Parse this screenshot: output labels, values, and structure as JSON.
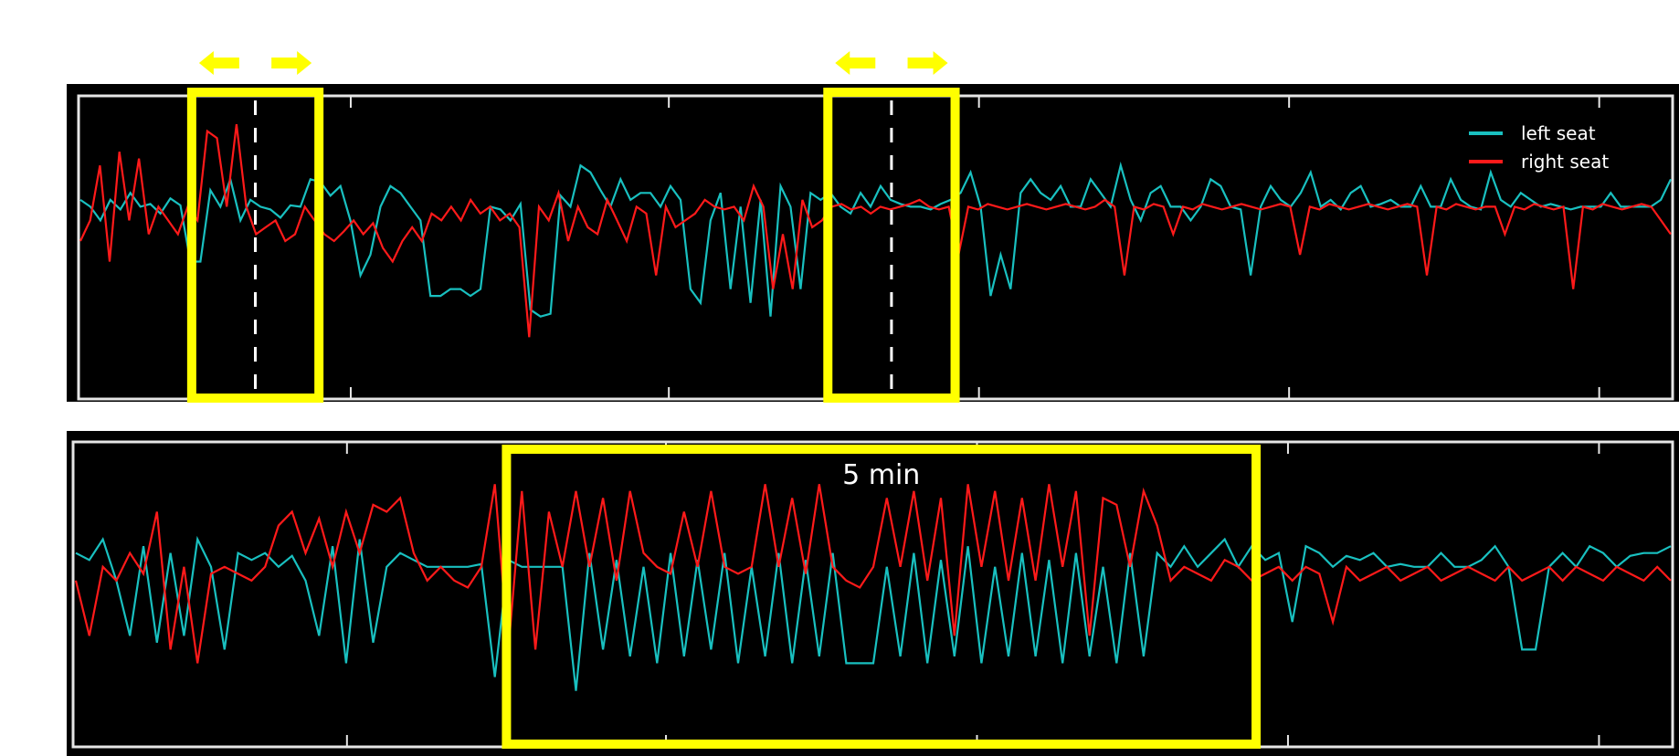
{
  "chart_data": [
    {
      "type": "line",
      "title": "",
      "xlabel": "",
      "ylabel": "",
      "grid": false,
      "legend_position": "top-right",
      "colors": {
        "background": "#000000",
        "axes": "#e6e6e6",
        "highlight": "#ffff00"
      },
      "series": [
        {
          "name": "left seat",
          "color": "#19c0c0",
          "values": [
            0.35,
            0.3,
            0.2,
            0.35,
            0.28,
            0.4,
            0.3,
            0.32,
            0.25,
            0.36,
            0.31,
            -0.1,
            -0.1,
            0.42,
            0.3,
            0.5,
            0.2,
            0.35,
            0.3,
            0.28,
            0.22,
            0.31,
            0.3,
            0.5,
            0.48,
            0.38,
            0.45,
            0.2,
            -0.2,
            -0.05,
            0.3,
            0.45,
            0.4,
            0.3,
            0.2,
            -0.35,
            -0.35,
            -0.3,
            -0.3,
            -0.35,
            -0.3,
            0.3,
            0.28,
            0.2,
            0.32,
            -0.45,
            -0.5,
            -0.48,
            0.38,
            0.3,
            0.6,
            0.55,
            0.42,
            0.3,
            0.5,
            0.35,
            0.4,
            0.4,
            0.3,
            0.45,
            0.35,
            -0.3,
            -0.4,
            0.2,
            0.4,
            -0.3,
            0.3,
            -0.4,
            0.35,
            -0.5,
            0.45,
            0.3,
            -0.3,
            0.4,
            0.35,
            0.4,
            0.3,
            0.25,
            0.4,
            0.3,
            0.45,
            0.35,
            0.32,
            0.3,
            0.3,
            0.28,
            0.32,
            0.35,
            0.4,
            0.55,
            0.3,
            -0.35,
            -0.05,
            -0.3,
            0.4,
            0.5,
            0.4,
            0.35,
            0.45,
            0.3,
            0.3,
            0.5,
            0.4,
            0.3,
            0.6,
            0.35,
            0.2,
            0.4,
            0.45,
            0.3,
            0.3,
            0.2,
            0.3,
            0.5,
            0.45,
            0.3,
            0.28,
            -0.2,
            0.3,
            0.45,
            0.35,
            0.3,
            0.4,
            0.55,
            0.3,
            0.35,
            0.28,
            0.4,
            0.45,
            0.3,
            0.32,
            0.35,
            0.3,
            0.3,
            0.45,
            0.3,
            0.3,
            0.5,
            0.35,
            0.3,
            0.28,
            0.55,
            0.35,
            0.3,
            0.4,
            0.35,
            0.3,
            0.32,
            0.3,
            0.28,
            0.3,
            0.3,
            0.3,
            0.4,
            0.3,
            0.3,
            0.3,
            0.3,
            0.35,
            0.5
          ]
        },
        {
          "name": "right seat",
          "color": "#ff1a1a",
          "values": [
            0.05,
            0.2,
            0.6,
            -0.1,
            0.7,
            0.2,
            0.65,
            0.1,
            0.3,
            0.2,
            0.1,
            0.3,
            0.2,
            0.85,
            0.8,
            0.3,
            0.9,
            0.3,
            0.1,
            0.15,
            0.2,
            0.05,
            0.1,
            0.3,
            0.2,
            0.1,
            0.05,
            0.12,
            0.2,
            0.1,
            0.18,
            0.0,
            -0.1,
            0.05,
            0.15,
            0.05,
            0.25,
            0.2,
            0.3,
            0.2,
            0.35,
            0.25,
            0.3,
            0.2,
            0.25,
            0.15,
            -0.65,
            0.3,
            0.2,
            0.4,
            0.05,
            0.3,
            0.15,
            0.1,
            0.35,
            0.2,
            0.05,
            0.3,
            0.25,
            -0.2,
            0.3,
            0.15,
            0.2,
            0.25,
            0.35,
            0.3,
            0.28,
            0.3,
            0.2,
            0.45,
            0.3,
            -0.3,
            0.1,
            -0.3,
            0.35,
            0.15,
            0.2,
            0.3,
            0.32,
            0.28,
            0.3,
            0.25,
            0.3,
            0.28,
            0.3,
            0.32,
            0.35,
            0.3,
            0.28,
            0.3,
            -0.05,
            0.3,
            0.28,
            0.32,
            0.3,
            0.28,
            0.3,
            0.32,
            0.3,
            0.28,
            0.3,
            0.32,
            0.3,
            0.28,
            0.3,
            0.35,
            0.3,
            -0.2,
            0.3,
            0.28,
            0.32,
            0.3,
            0.1,
            0.3,
            0.28,
            0.32,
            0.3,
            0.28,
            0.3,
            0.32,
            0.3,
            0.28,
            0.3,
            0.32,
            0.3,
            -0.05,
            0.3,
            0.28,
            0.32,
            0.3,
            0.28,
            0.3,
            0.32,
            0.3,
            0.28,
            0.3,
            0.32,
            0.3,
            -0.2,
            0.3,
            0.28,
            0.32,
            0.3,
            0.28,
            0.3,
            0.3,
            0.1,
            0.3,
            0.28,
            0.32,
            0.3,
            0.28,
            0.3,
            -0.3,
            0.3,
            0.28,
            0.32,
            0.3,
            0.28,
            0.3,
            0.32,
            0.3,
            0.2,
            0.1
          ]
        }
      ],
      "highlight_windows": [
        {
          "start": 0.07,
          "end": 0.15,
          "arrow_labels": [
            "⬅",
            "➡"
          ]
        },
        {
          "start": 0.47,
          "end": 0.55,
          "arrow_labels": [
            "⬅",
            "➡"
          ]
        }
      ]
    },
    {
      "type": "line",
      "title": "",
      "xlabel": "",
      "ylabel": "",
      "grid": false,
      "colors": {
        "background": "#000000",
        "axes": "#e6e6e6",
        "highlight": "#ffff00"
      },
      "series": [
        {
          "name": "left seat",
          "color": "#19c0c0",
          "values": [
            0.3,
            0.25,
            0.4,
            0.1,
            -0.3,
            0.35,
            -0.35,
            0.3,
            -0.3,
            0.4,
            0.2,
            -0.4,
            0.3,
            0.25,
            0.3,
            0.2,
            0.28,
            0.1,
            -0.3,
            0.35,
            -0.5,
            0.4,
            -0.35,
            0.2,
            0.3,
            0.25,
            0.2,
            0.2,
            0.2,
            0.2,
            0.22,
            -0.6,
            0.25,
            0.2,
            0.2,
            0.2,
            0.2,
            -0.7,
            0.3,
            -0.4,
            0.25,
            -0.45,
            0.2,
            -0.5,
            0.3,
            -0.45,
            0.25,
            -0.4,
            0.3,
            -0.5,
            0.2,
            -0.45,
            0.3,
            -0.5,
            0.25,
            -0.45,
            0.3,
            -0.5,
            -0.5,
            -0.5,
            0.2,
            -0.45,
            0.3,
            -0.5,
            0.25,
            -0.45,
            0.35,
            -0.5,
            0.2,
            -0.45,
            0.3,
            -0.45,
            0.25,
            -0.5,
            0.3,
            -0.45,
            0.2,
            -0.5,
            0.3,
            -0.45,
            0.3,
            0.2,
            0.35,
            0.2,
            0.3,
            0.4,
            0.2,
            0.35,
            0.25,
            0.3,
            -0.2,
            0.35,
            0.3,
            0.2,
            0.28,
            0.25,
            0.3,
            0.2,
            0.22,
            0.2,
            0.2,
            0.3,
            0.2,
            0.2,
            0.25,
            0.35,
            0.2,
            -0.4,
            -0.4,
            0.2,
            0.3,
            0.2,
            0.35,
            0.3,
            0.2,
            0.28,
            0.3,
            0.3,
            0.35
          ]
        },
        {
          "name": "right seat",
          "color": "#ff1a1a",
          "values": [
            0.1,
            -0.3,
            0.2,
            0.1,
            0.3,
            0.15,
            0.6,
            -0.4,
            0.2,
            -0.5,
            0.15,
            0.2,
            0.15,
            0.1,
            0.2,
            0.5,
            0.6,
            0.3,
            0.55,
            0.2,
            0.6,
            0.3,
            0.65,
            0.6,
            0.7,
            0.3,
            0.1,
            0.2,
            0.1,
            0.05,
            0.2,
            0.8,
            -0.4,
            0.75,
            -0.4,
            0.6,
            0.2,
            0.75,
            0.2,
            0.7,
            0.1,
            0.75,
            0.3,
            0.2,
            0.15,
            0.6,
            0.2,
            0.75,
            0.2,
            0.15,
            0.2,
            0.8,
            0.2,
            0.7,
            0.15,
            0.8,
            0.2,
            0.1,
            0.05,
            0.2,
            0.7,
            0.2,
            0.75,
            0.1,
            0.7,
            -0.3,
            0.8,
            0.2,
            0.75,
            0.1,
            0.7,
            0.1,
            0.8,
            0.2,
            0.75,
            -0.3,
            0.7,
            0.65,
            0.2,
            0.75,
            0.5,
            0.1,
            0.2,
            0.15,
            0.1,
            0.25,
            0.2,
            0.1,
            0.15,
            0.2,
            0.1,
            0.2,
            0.15,
            -0.2,
            0.2,
            0.1,
            0.15,
            0.2,
            0.1,
            0.15,
            0.2,
            0.1,
            0.15,
            0.2,
            0.15,
            0.1,
            0.2,
            0.1,
            0.15,
            0.2,
            0.1,
            0.2,
            0.15,
            0.1,
            0.2,
            0.15,
            0.1,
            0.2,
            0.1
          ]
        }
      ],
      "highlight_windows": [
        {
          "start": 0.27,
          "end": 0.74,
          "label": "5 min"
        }
      ]
    }
  ]
}
